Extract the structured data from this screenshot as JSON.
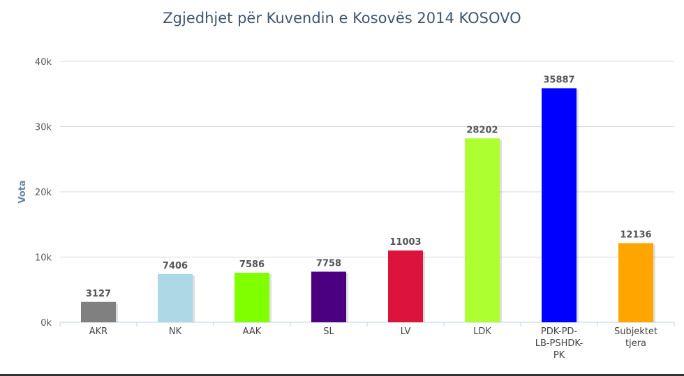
{
  "chart_data": {
    "type": "bar",
    "title": "Zgjedhjet për Kuvendin e Kosovës 2014 KOSOVO",
    "ylabel": "Vota",
    "xlabel": "",
    "ylim": [
      0,
      40000
    ],
    "yticks": [
      0,
      10000,
      20000,
      30000,
      40000
    ],
    "ytick_labels": [
      "0k",
      "10k",
      "20k",
      "30k",
      "40k"
    ],
    "grid": true,
    "legend": "none",
    "categories": [
      [
        "AKR"
      ],
      [
        "NK"
      ],
      [
        "AAK"
      ],
      [
        "SL"
      ],
      [
        "LV"
      ],
      [
        "LDK"
      ],
      [
        "PDK-PD-",
        "LB-PSHDK-",
        "PK"
      ],
      [
        "Subjektet",
        "tjera"
      ]
    ],
    "values": [
      3127,
      7406,
      7586,
      7758,
      11003,
      28202,
      35887,
      12136
    ],
    "colors": [
      "#808080",
      "#add8e6",
      "#7fff00",
      "#4b0082",
      "#dc143c",
      "#adff2f",
      "#0000ff",
      "#ffa500"
    ]
  }
}
